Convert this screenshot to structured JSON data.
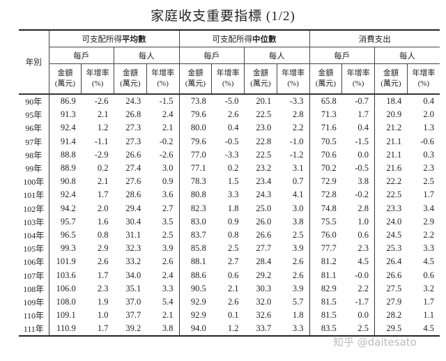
{
  "title": "家庭收支重要指標 (1/2)",
  "header": {
    "year_label": "年別",
    "groups": [
      {
        "prefix": "可支配所得",
        "bold": "平均數"
      },
      {
        "prefix": "可支配所得",
        "bold": "中位數"
      },
      {
        "prefix": "消費支出",
        "bold": ""
      }
    ],
    "per_household": "每戶",
    "per_person": "每人",
    "amount_label": "金額",
    "amount_unit": "(萬元)",
    "growth_label": "年增率",
    "growth_unit": "(%)"
  },
  "rows": [
    [
      "90年",
      "86.9",
      "-2.6",
      "24.3",
      "-1.5",
      "73.8",
      "-5.0",
      "20.1",
      "-3.3",
      "65.8",
      "-0.7",
      "18.4",
      "0.4"
    ],
    [
      "95年",
      "91.3",
      "2.1",
      "26.8",
      "2.4",
      "79.6",
      "2.6",
      "22.5",
      "2.8",
      "71.3",
      "1.7",
      "20.9",
      "2.0"
    ],
    [
      "96年",
      "92.4",
      "1.2",
      "27.3",
      "2.1",
      "80.0",
      "0.4",
      "23.0",
      "2.2",
      "71.6",
      "0.4",
      "21.2",
      "1.3"
    ],
    [
      "97年",
      "91.4",
      "-1.1",
      "27.3",
      "-0.2",
      "79.6",
      "-0.5",
      "22.8",
      "-1.0",
      "70.5",
      "-1.5",
      "21.1",
      "-0.6"
    ],
    [
      "98年",
      "88.8",
      "-2.9",
      "26.6",
      "-2.6",
      "77.0",
      "-3.3",
      "22.5",
      "-1.2",
      "70.6",
      "0.0",
      "21.1",
      "0.3"
    ],
    [
      "99年",
      "88.9",
      "0.2",
      "27.4",
      "3.0",
      "77.1",
      "0.2",
      "23.2",
      "3.1",
      "70.2",
      "-0.5",
      "21.6",
      "2.3"
    ],
    [
      "100年",
      "90.8",
      "2.1",
      "27.6",
      "0.9",
      "78.3",
      "1.5",
      "23.4",
      "0.7",
      "72.9",
      "3.8",
      "22.2",
      "2.5"
    ],
    [
      "101年",
      "92.4",
      "1.7",
      "28.6",
      "3.6",
      "80.8",
      "3.3",
      "24.3",
      "4.1",
      "72.8",
      "-0.2",
      "22.5",
      "1.7"
    ],
    [
      "102年",
      "94.2",
      "2.0",
      "29.4",
      "2.7",
      "82.3",
      "1.8",
      "25.0",
      "3.0",
      "74.8",
      "2.8",
      "23.3",
      "3.4"
    ],
    [
      "103年",
      "95.7",
      "1.6",
      "30.4",
      "3.5",
      "83.0",
      "0.9",
      "26.0",
      "3.8",
      "75.5",
      "1.0",
      "24.0",
      "2.9"
    ],
    [
      "104年",
      "96.5",
      "0.8",
      "31.1",
      "2.5",
      "83.7",
      "0.8",
      "26.6",
      "2.5",
      "76.0",
      "0.6",
      "24.5",
      "2.2"
    ],
    [
      "105年",
      "99.3",
      "2.9",
      "32.3",
      "3.9",
      "85.8",
      "2.5",
      "27.7",
      "3.9",
      "77.7",
      "2.3",
      "25.3",
      "3.3"
    ],
    [
      "106年",
      "101.9",
      "2.6",
      "33.2",
      "2.6",
      "88.1",
      "2.7",
      "28.4",
      "2.6",
      "81.2",
      "4.5",
      "26.4",
      "4.5"
    ],
    [
      "107年",
      "103.6",
      "1.7",
      "34.0",
      "2.4",
      "88.6",
      "0.6",
      "29.2",
      "2.6",
      "81.1",
      "-0.0",
      "26.6",
      "0.6"
    ],
    [
      "108年",
      "106.0",
      "2.3",
      "35.1",
      "3.3",
      "90.5",
      "2.1",
      "30.3",
      "3.9",
      "82.9",
      "2.2",
      "27.5",
      "3.2"
    ],
    [
      "109年",
      "108.0",
      "1.9",
      "37.0",
      "5.4",
      "92.9",
      "2.6",
      "32.0",
      "5.7",
      "81.5",
      "-1.7",
      "27.9",
      "1.7"
    ],
    [
      "110年",
      "109.1",
      "1.0",
      "37.7",
      "2.1",
      "92.9",
      "0.1",
      "32.6",
      "1.8",
      "81.5",
      "0.0",
      "28.2",
      "1.1"
    ],
    [
      "111年",
      "110.9",
      "1.7",
      "39.2",
      "3.8",
      "94.0",
      "1.2",
      "33.7",
      "3.3",
      "83.5",
      "2.5",
      "29.5",
      "4.5"
    ]
  ],
  "watermark": "知乎 @daitesato"
}
